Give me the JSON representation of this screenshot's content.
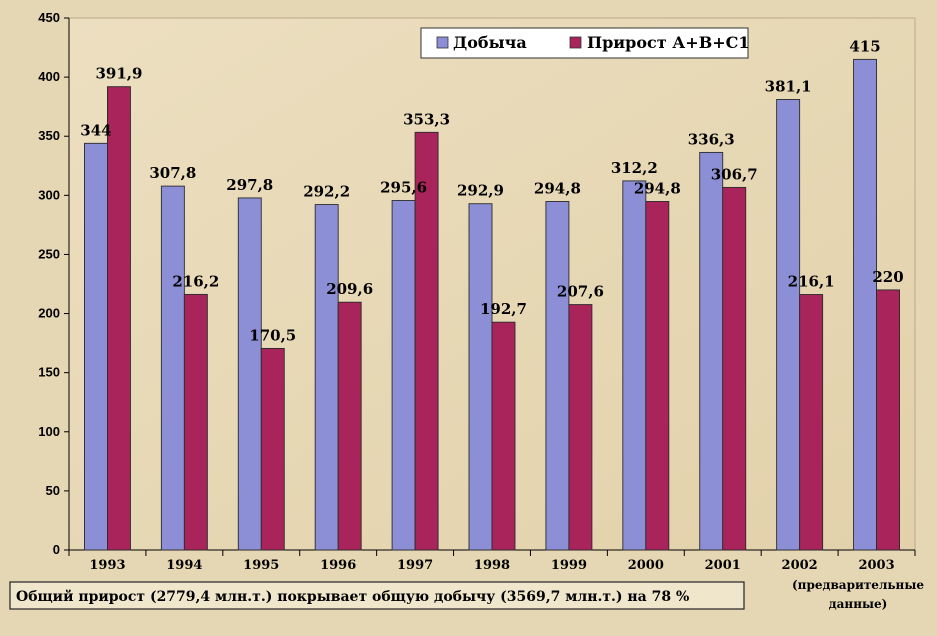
{
  "chart_data": {
    "type": "bar",
    "categories": [
      "1993",
      "1994",
      "1995",
      "1996",
      "1997",
      "1998",
      "1999",
      "2000",
      "2001",
      "2002",
      "2003"
    ],
    "series": [
      {
        "name": "Добыча",
        "color": "#8c8fd6",
        "values": [
          344,
          307.8,
          297.8,
          292.2,
          295.6,
          292.9,
          294.8,
          312.2,
          336.3,
          381.1,
          415
        ],
        "labels": [
          "344",
          "307,8",
          "297,8",
          "292,2",
          "295,6",
          "292,9",
          "294,8",
          "312,2",
          "336,3",
          "381,1",
          "415"
        ]
      },
      {
        "name": "Прирост А+В+С1",
        "color": "#a8245a",
        "values": [
          391.9,
          216.2,
          170.5,
          209.6,
          353.3,
          192.7,
          207.6,
          294.8,
          306.7,
          216.1,
          220
        ],
        "labels": [
          "391,9",
          "216,2",
          "170,5",
          "209,6",
          "353,3",
          "192,7",
          "207,6",
          "294,8",
          "306,7",
          "216,1",
          "220"
        ]
      }
    ],
    "ylim": [
      0,
      450
    ],
    "yticks": [
      0,
      50,
      100,
      150,
      200,
      250,
      300,
      350,
      400,
      450
    ],
    "grid": false,
    "legend_placement": "top-right",
    "xlabel": "",
    "ylabel": "",
    "title": "",
    "category_note": "(предварительные данные)",
    "category_note_line1": "(предварительные",
    "category_note_line2": "данные)"
  },
  "footnote": "Общий прирост (2779,4 млн.т.) покрывает общую добычу (3569,7 млн.т.) на 78 %"
}
